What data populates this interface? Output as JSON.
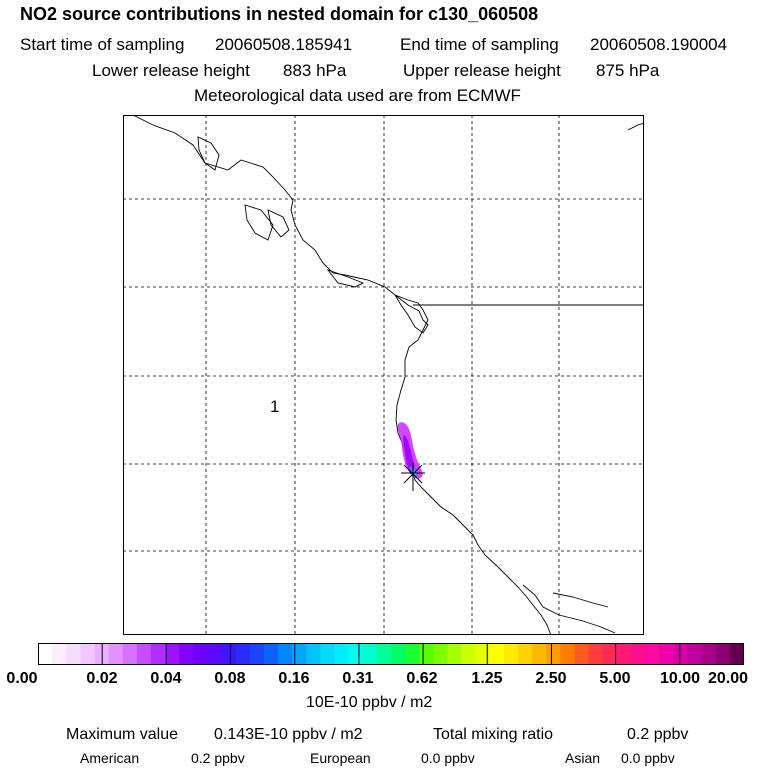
{
  "header": {
    "title": "NO2 source contributions in nested domain for c130_060508",
    "start_label": "Start time of sampling",
    "start_value": "20060508.185941",
    "end_label": "End time of sampling",
    "end_value": "20060508.190004",
    "lower_label": "Lower release height",
    "lower_value": "883 hPa",
    "upper_label": "Upper release height",
    "upper_value": "875 hPa",
    "met_line": "Meteorological data used are from ECMWF"
  },
  "map": {
    "label": "1",
    "source_marker": "x-star-icon",
    "plume_colors": [
      "#9900ff",
      "#cc33ff",
      "#e066ff",
      "#6666ff"
    ]
  },
  "colorbar": {
    "colors": [
      "#ffffff",
      "#fbeeff",
      "#f6ddff",
      "#f0c8ff",
      "#e9b0ff",
      "#e291ff",
      "#d572ff",
      "#c64cff",
      "#b22eff",
      "#9f12ff",
      "#8300ff",
      "#6d00ff",
      "#5a0aff",
      "#3f16ff",
      "#2a2bff",
      "#1a46ff",
      "#0c62ff",
      "#0086ff",
      "#00a6ff",
      "#00c4ff",
      "#00dbff",
      "#00eeff",
      "#00ffee",
      "#00ffcc",
      "#00ff99",
      "#00ff66",
      "#1aff33",
      "#55ff00",
      "#7cff00",
      "#a6ff00",
      "#ccff00",
      "#e6ff00",
      "#ffff00",
      "#ffea00",
      "#ffd200",
      "#ffb800",
      "#ff9d00",
      "#ff7d00",
      "#ff5a1e",
      "#ff3c3c",
      "#ff2a5a",
      "#ff1a78",
      "#ff0f8f",
      "#ff0aa0",
      "#f000a8",
      "#d800a8",
      "#c000a0",
      "#a8008c",
      "#8a0070",
      "#640050"
    ],
    "ticks": [
      "0.00",
      "0.02",
      "0.04",
      "0.08",
      "0.16",
      "0.31",
      "0.62",
      "1.25",
      "2.50",
      "5.00",
      "10.00",
      "20.00"
    ],
    "units": "10E-10 ppbv / m2"
  },
  "footer": {
    "max_label": "Maximum value",
    "max_value": "0.143E-10 ppbv / m2",
    "total_label": "Total mixing ratio",
    "total_value": "0.2 ppbv",
    "american_label": "American",
    "american_value": "0.2 ppbv",
    "european_label": "European",
    "european_value": "0.0 ppbv",
    "asian_label": "Asian",
    "asian_value": "0.0 ppbv"
  }
}
